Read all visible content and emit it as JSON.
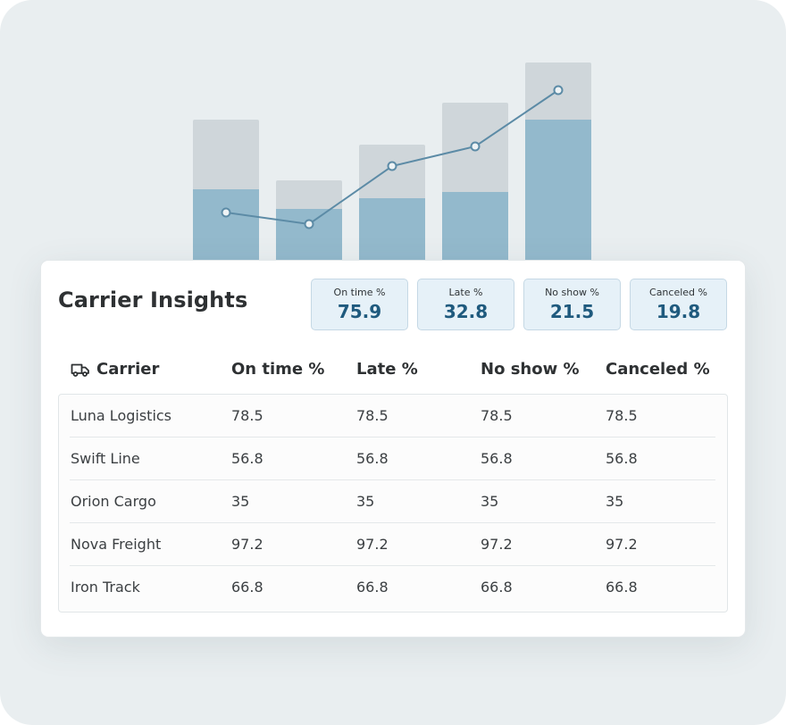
{
  "chart_data": {
    "type": "bar",
    "categories": [
      "",
      "",
      "",
      "",
      ""
    ],
    "series": [
      {
        "values": [
          158,
          90,
          130,
          177,
          222
        ]
      },
      {
        "values": [
          80,
          58,
          70,
          77,
          158
        ]
      },
      {
        "values": [
          54,
          41,
          106,
          128,
          191
        ]
      }
    ],
    "ylim": [
      0,
      230
    ],
    "title": "",
    "xlabel": "",
    "ylabel": "",
    "colors": {
      "total_bar": "#cfd6da",
      "fill_bar": "#93b9cc",
      "line": "#5c8ba6"
    }
  },
  "card": {
    "title": "Carrier Insights",
    "stats": [
      {
        "label": "On time %",
        "value": "75.9"
      },
      {
        "label": "Late %",
        "value": "32.8"
      },
      {
        "label": "No show %",
        "value": "21.5"
      },
      {
        "label": "Canceled %",
        "value": "19.8"
      }
    ],
    "table": {
      "headers": [
        "Carrier",
        "On time %",
        "Late %",
        "No show %",
        "Canceled %"
      ],
      "rows": [
        [
          "Luna Logistics",
          "78.5",
          "78.5",
          "78.5",
          "78.5"
        ],
        [
          "Swift Line",
          "56.8",
          "56.8",
          "56.8",
          "56.8"
        ],
        [
          "Orion Cargo",
          "35",
          "35",
          "35",
          "35"
        ],
        [
          "Nova Freight",
          "97.2",
          "97.2",
          "97.2",
          "97.2"
        ],
        [
          "Iron Track",
          "66.8",
          "66.8",
          "66.8",
          "66.8"
        ]
      ]
    }
  },
  "icons": {
    "carrier_header": "truck-icon"
  },
  "colors": {
    "accent": "#1f5a7e",
    "stat_bg": "#e6f1f8",
    "text": "#2e3133"
  }
}
